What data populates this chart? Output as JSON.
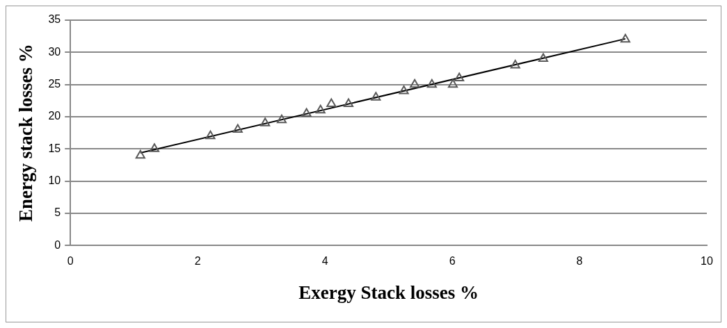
{
  "chart_data": {
    "type": "scatter",
    "xlabel": "Exergy Stack losses %",
    "ylabel": "Energy stack losses %",
    "xlim": [
      0,
      10
    ],
    "xticks": [
      0,
      2,
      4,
      6,
      8,
      10
    ],
    "ylim": [
      0,
      35
    ],
    "yticks": [
      0,
      5,
      10,
      15,
      20,
      25,
      30,
      35
    ],
    "grid": "y",
    "legend": false,
    "series": [
      {
        "color": "#595959",
        "marker": "triangle",
        "x": [
          1.1,
          1.32,
          2.2,
          2.63,
          3.06,
          3.32,
          3.71,
          3.93,
          4.1,
          4.37,
          4.8,
          5.24,
          5.41,
          5.68,
          6.01,
          6.11,
          6.99,
          7.43,
          8.72
        ],
        "values": [
          14,
          15,
          17,
          18,
          19,
          19.5,
          20.5,
          21,
          22,
          22,
          23,
          24,
          25,
          25,
          25,
          26,
          28,
          29,
          32
        ]
      },
      {
        "type": "line",
        "color": "#000000",
        "marker": "none",
        "line_style": "solid",
        "x": [
          1.1,
          8.72
        ],
        "values": [
          14.4,
          32.1
        ]
      }
    ]
  }
}
